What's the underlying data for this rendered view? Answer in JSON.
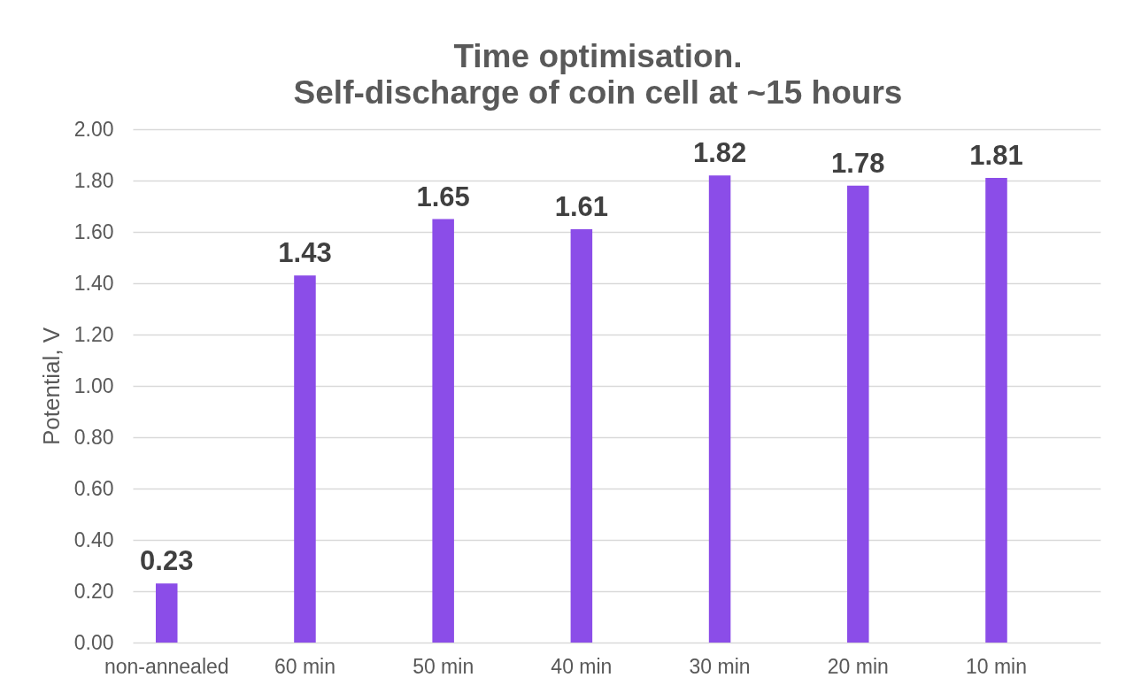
{
  "chart_data": {
    "type": "bar",
    "title": "Time optimisation.\nSelf-discharge of coin cell at ~15 hours",
    "ylabel": "Potential, V",
    "categories": [
      "non-annealed",
      "60 min",
      "50 min",
      "40 min",
      "30 min",
      "20 min",
      "10 min"
    ],
    "values": [
      0.23,
      1.43,
      1.65,
      1.61,
      1.82,
      1.78,
      1.81
    ],
    "color": "#8b4de8",
    "ylim": [
      0,
      2
    ],
    "yticks": [
      {
        "value": 0,
        "label": "0.00"
      },
      {
        "value": 0.2,
        "label": "0.20"
      },
      {
        "value": 0.4,
        "label": "0.40"
      },
      {
        "value": 0.6,
        "label": "0.60"
      },
      {
        "value": 0.8,
        "label": "0.80"
      },
      {
        "value": 1,
        "label": "1.00"
      },
      {
        "value": 1.2,
        "label": "1.20"
      },
      {
        "value": 1.4,
        "label": "1.40"
      },
      {
        "value": 1.6,
        "label": "1.60"
      },
      {
        "value": 1.8,
        "label": "1.80"
      },
      {
        "value": 2,
        "label": "2.00"
      }
    ],
    "grid": "y",
    "data_labels": true
  }
}
